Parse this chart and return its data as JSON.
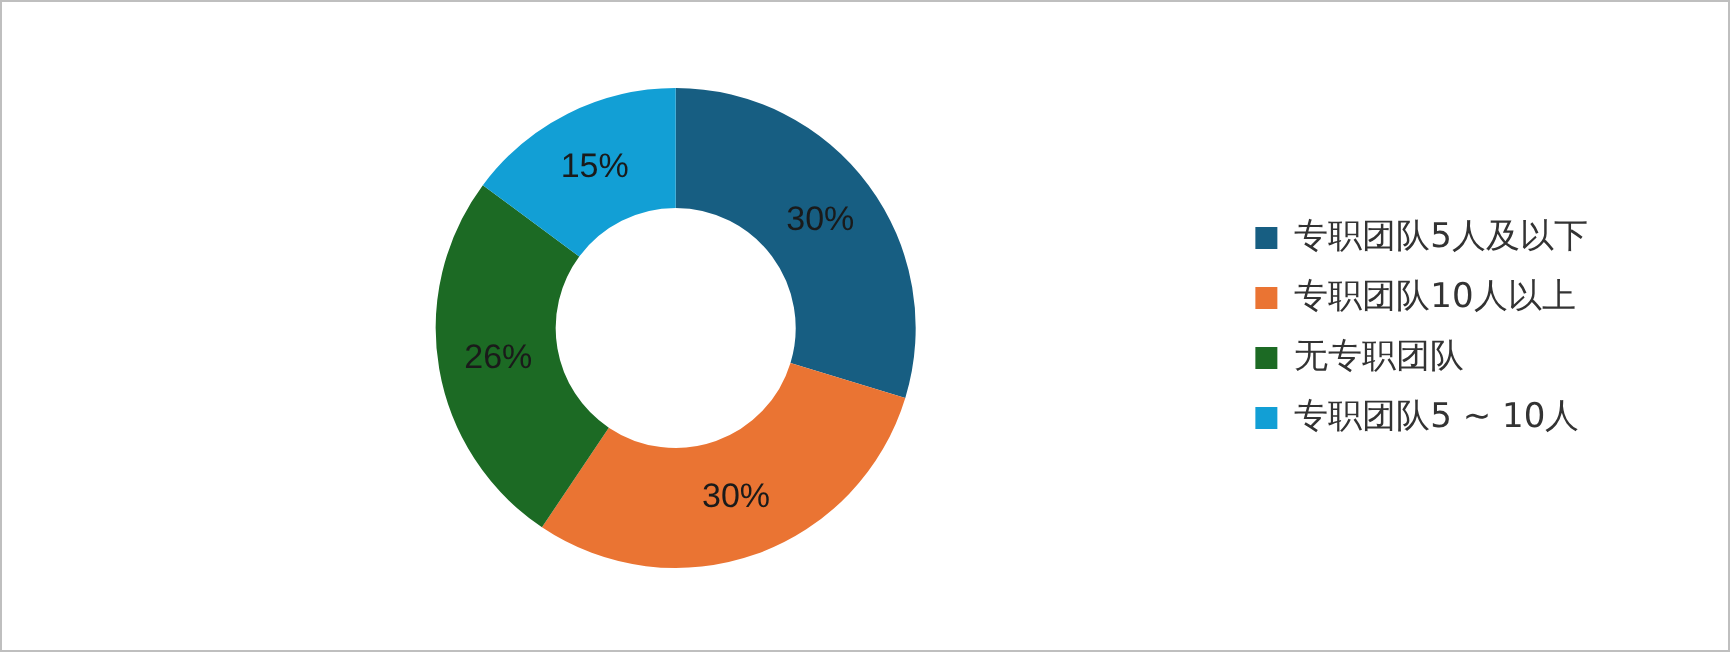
{
  "chart_data": {
    "type": "donut",
    "categories": [
      "专职团队5人及以下",
      "专职团队10人以上",
      "无专职团队",
      "专职团队5 ~ 10人"
    ],
    "values": [
      30,
      30,
      26,
      15
    ],
    "colors": [
      "#175e82",
      "#ea7433",
      "#1c6a24",
      "#129fd5"
    ],
    "value_labels": [
      "30%",
      "30%",
      "26%",
      "15%"
    ],
    "legend": "right"
  }
}
